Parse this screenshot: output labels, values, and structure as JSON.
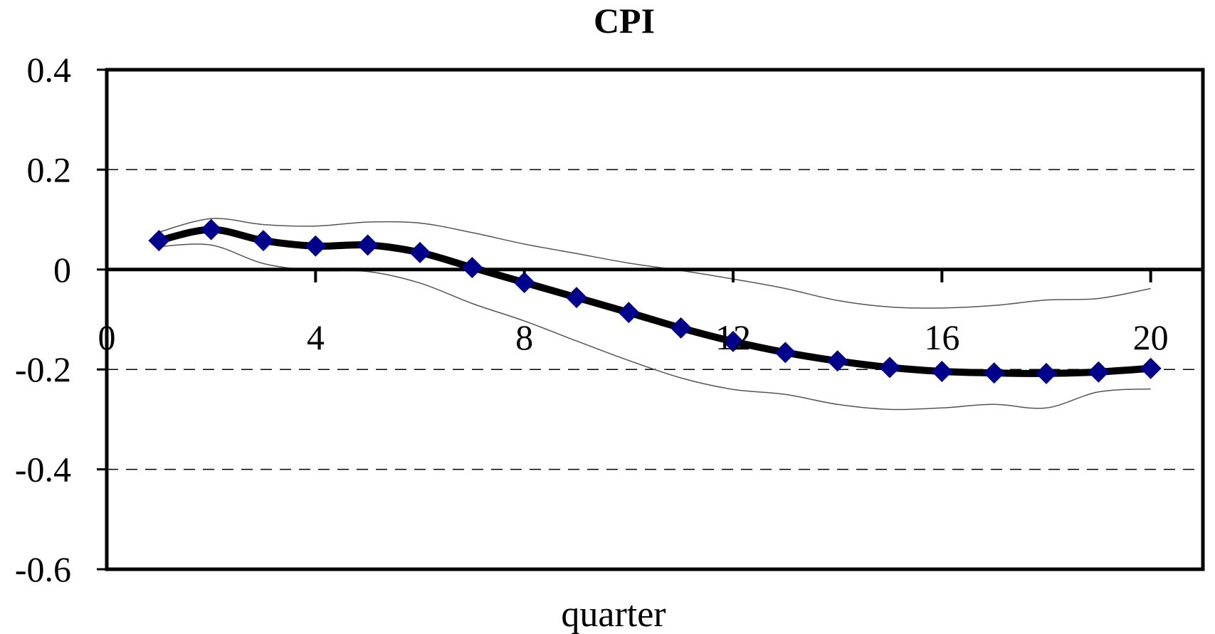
{
  "chart_data": {
    "type": "line",
    "title": "CPI",
    "xlabel": "quarter",
    "ylabel": "",
    "xlim": [
      0,
      21
    ],
    "ylim": [
      -0.6,
      0.4
    ],
    "x_ticks": [
      0,
      4,
      8,
      12,
      16,
      20
    ],
    "y_ticks": [
      0.4,
      0.2,
      0,
      -0.2,
      -0.4,
      -0.6
    ],
    "y_tick_labels": [
      "0.4",
      "0.2",
      "0",
      "-0.2",
      "-0.4",
      "-0.6"
    ],
    "x_tick_labels": [
      "0",
      "4",
      "8",
      "12",
      "16",
      "20"
    ],
    "grid": "horizontal dashed",
    "legend": "none",
    "x": [
      1,
      2,
      3,
      4,
      5,
      6,
      7,
      8,
      9,
      10,
      11,
      12,
      13,
      14,
      15,
      16,
      17,
      18,
      19,
      20
    ],
    "series": [
      {
        "role": "estimate",
        "color": "#000000",
        "marker_color": "#00008b",
        "marker": "diamond",
        "values": [
          0.058,
          0.08,
          0.058,
          0.047,
          0.049,
          0.034,
          0.004,
          -0.026,
          -0.056,
          -0.086,
          -0.117,
          -0.144,
          -0.166,
          -0.183,
          -0.196,
          -0.204,
          -0.207,
          -0.208,
          -0.205,
          -0.198
        ]
      },
      {
        "role": "upper-band",
        "color": "#555555",
        "values": [
          0.075,
          0.102,
          0.09,
          0.087,
          0.095,
          0.093,
          0.074,
          0.051,
          0.032,
          0.013,
          -0.002,
          -0.019,
          -0.038,
          -0.062,
          -0.075,
          -0.077,
          -0.072,
          -0.061,
          -0.058,
          -0.038
        ]
      },
      {
        "role": "lower-band",
        "color": "#555555",
        "values": [
          0.046,
          0.049,
          0.012,
          -0.002,
          -0.004,
          -0.027,
          -0.068,
          -0.103,
          -0.143,
          -0.182,
          -0.217,
          -0.24,
          -0.25,
          -0.27,
          -0.28,
          -0.277,
          -0.27,
          -0.277,
          -0.245,
          -0.239
        ]
      }
    ]
  }
}
